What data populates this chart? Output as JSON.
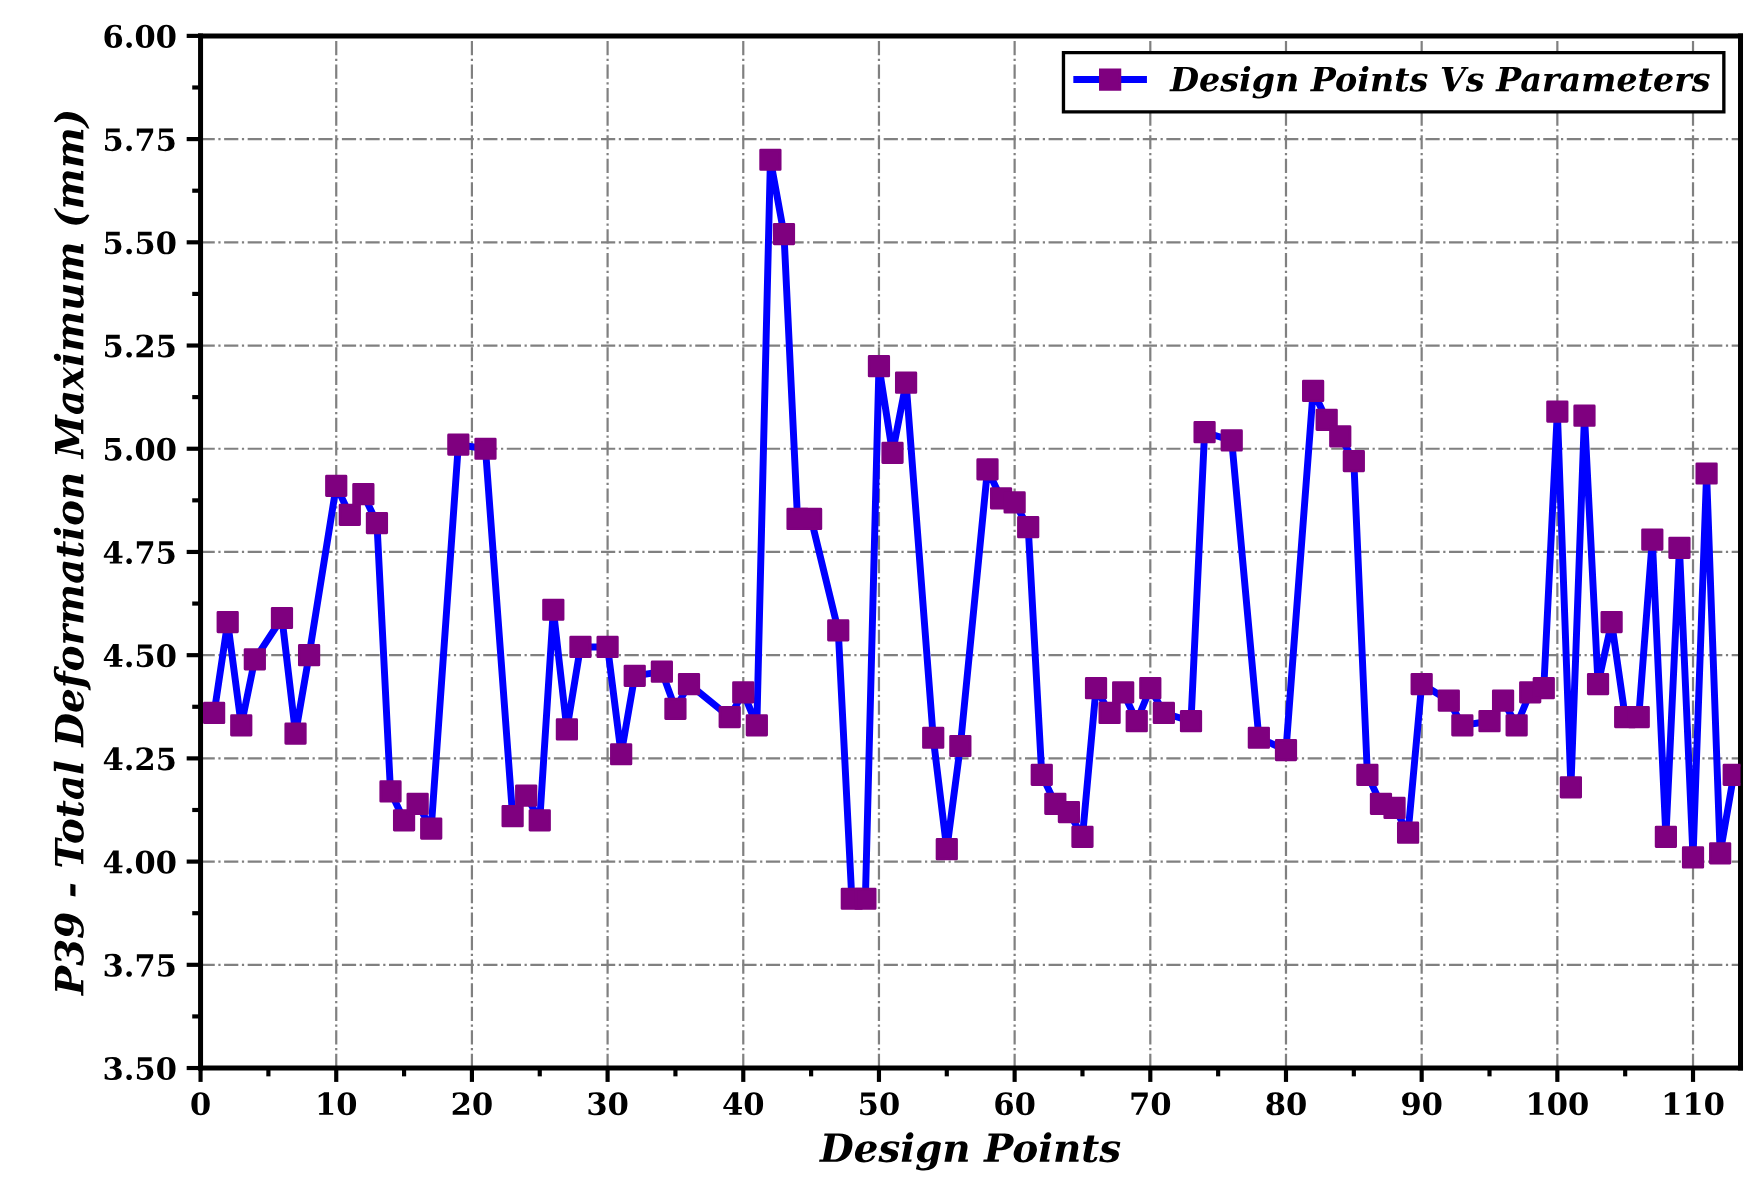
{
  "chart_data": {
    "type": "line",
    "xlabel": "Design Points",
    "ylabel": "P39 - Total Deformation Maximum (mm)",
    "xlim": [
      0,
      113.5
    ],
    "xticks": [
      0,
      10,
      20,
      30,
      40,
      50,
      60,
      70,
      80,
      90,
      100,
      110
    ],
    "ylim": [
      3.5,
      6.0
    ],
    "yticks": [
      {
        "value": 3.5,
        "label": "3.50"
      },
      {
        "value": 3.75,
        "label": "3.75"
      },
      {
        "value": 4.0,
        "label": "4.00"
      },
      {
        "value": 4.25,
        "label": "4.25"
      },
      {
        "value": 4.5,
        "label": "4.50"
      },
      {
        "value": 4.75,
        "label": "4.75"
      },
      {
        "value": 5.0,
        "label": "5.00"
      },
      {
        "value": 5.25,
        "label": "5.25"
      },
      {
        "value": 5.5,
        "label": "5.50"
      },
      {
        "value": 5.75,
        "label": "5.75"
      },
      {
        "value": 6.0,
        "label": "6.00"
      }
    ],
    "grid": true,
    "legend": "top right",
    "marker": "square",
    "line_style": "solid",
    "series": [
      {
        "name": "Design Points Vs Parameters",
        "color": "#0000ff",
        "x": [
          1,
          2,
          3,
          4,
          6,
          7,
          8,
          10,
          11,
          12,
          13,
          14,
          15,
          16,
          17,
          19,
          21,
          23,
          24,
          25,
          26,
          27,
          28,
          30,
          31,
          32,
          34,
          35,
          36,
          39,
          40,
          41,
          42,
          43,
          44,
          45,
          47,
          48,
          49,
          50,
          51,
          52,
          54,
          55,
          56,
          58,
          59,
          60,
          61,
          62,
          63,
          64,
          65,
          66,
          67,
          68,
          69,
          70,
          71,
          73,
          74,
          76,
          78,
          80,
          82,
          83,
          84,
          85,
          86,
          87,
          88,
          89,
          90,
          92,
          93,
          95,
          96,
          97,
          98,
          99,
          100,
          101,
          102,
          103,
          104,
          105,
          106,
          107,
          108,
          109,
          110,
          111,
          112,
          113
        ],
        "values": [
          4.36,
          4.58,
          4.33,
          4.49,
          4.59,
          4.31,
          4.5,
          4.91,
          4.84,
          4.89,
          4.82,
          4.17,
          4.1,
          4.14,
          4.08,
          5.01,
          5.0,
          4.11,
          4.16,
          4.1,
          4.61,
          4.32,
          4.52,
          4.52,
          4.26,
          4.45,
          4.46,
          4.37,
          4.43,
          4.35,
          4.41,
          4.33,
          5.7,
          5.52,
          4.83,
          4.83,
          4.56,
          3.91,
          3.91,
          5.2,
          4.99,
          5.16,
          4.3,
          4.03,
          4.28,
          4.95,
          4.88,
          4.87,
          4.81,
          4.21,
          4.14,
          4.12,
          4.06,
          4.42,
          4.36,
          4.41,
          4.34,
          4.42,
          4.36,
          4.34,
          5.04,
          5.02,
          4.3,
          4.27,
          5.14,
          5.07,
          5.03,
          4.97,
          4.21,
          4.14,
          4.13,
          4.07,
          4.43,
          4.39,
          4.33,
          4.34,
          4.39,
          4.33,
          4.41,
          4.42,
          5.09,
          4.18,
          5.08,
          4.43,
          4.58,
          4.35,
          4.35,
          4.78,
          4.06,
          4.76,
          4.01,
          4.94,
          4.02,
          4.21
        ],
        "colors": [
          "#7f007f",
          "#7f007f",
          "#7f007f",
          "#7f007f",
          "#7f007f",
          "#7f007f",
          "#7f007f",
          "#7f007f",
          "#7f007f",
          "#7f007f",
          "#7f007f",
          "#7f007f",
          "#7f007f",
          "#7f007f",
          "#7f007f",
          "#7f007f",
          "#7f007f",
          "#7f007f",
          "#7f007f",
          "#7f007f",
          "#7f007f",
          "#7f007f",
          "#7f007f",
          "#7f007f",
          "#7f007f",
          "#7f007f",
          "#7f007f",
          "#7f007f",
          "#7f007f",
          "#7f007f",
          "#7f007f",
          "#7f007f",
          "#7f007f",
          "#7f007f",
          "#7f007f",
          "#7f007f",
          "#7f007f",
          "#7f007f",
          "#7f007f",
          "#7f007f",
          "#7f007f",
          "#7f007f",
          "#7f007f",
          "#7f007f",
          "#7f007f",
          "#7f007f",
          "#7f007f",
          "#7f007f",
          "#7f007f",
          "#7f007f",
          "#7f007f",
          "#7f007f",
          "#7f007f",
          "#7f007f",
          "#7f007f",
          "#7f007f",
          "#7f007f",
          "#7f007f",
          "#7f007f",
          "#7f007f",
          "#7f007f",
          "#7f007f",
          "#7f007f",
          "#7f007f",
          "#7f007f",
          "#7f007f",
          "#7f007f",
          "#7f007f",
          "#7f007f",
          "#7f007f",
          "#7f007f",
          "#7f007f",
          "#7f007f",
          "#7f007f",
          "#7f007f",
          "#7f007f",
          "#7f007f",
          "#7f007f",
          "#7f007f",
          "#7f007f",
          "#7f007f",
          "#7f007f",
          "#7f007f",
          "#7f007f",
          "#7f007f",
          "#7f007f",
          "#7f007f",
          "#7f007f",
          "#7f007f",
          "#7f007f",
          "#7f007f",
          "#7f007f",
          "#7f007f",
          "#7f007f"
        ]
      }
    ]
  }
}
